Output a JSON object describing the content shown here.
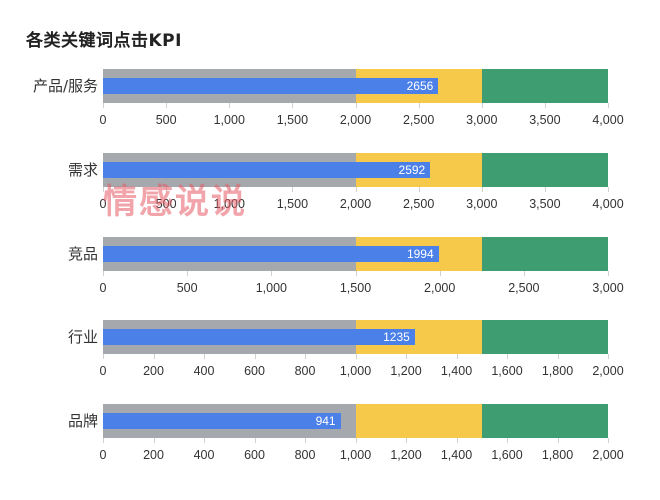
{
  "title": "各类关键词点击KPI",
  "watermark": "情感说说",
  "colors": {
    "poor": "#a5a8ad",
    "satisfactory": "#f6c94a",
    "good": "#3e9e72",
    "actual": "#4a80e8"
  },
  "chart_data": {
    "type": "bar",
    "subtype": "bullet",
    "title": "各类关键词点击KPI",
    "orientation": "horizontal",
    "categories": [
      "产品/服务",
      "需求",
      "竞品",
      "行业",
      "品牌"
    ],
    "series": [
      {
        "name": "actual",
        "values": [
          2656,
          2592,
          1994,
          1235,
          941
        ]
      }
    ],
    "rows": [
      {
        "label": "产品/服务",
        "value": 2656,
        "ranges": [
          2000,
          3000,
          4000
        ],
        "xlim": [
          0,
          4000
        ],
        "ticks": [
          "0",
          "500",
          "1,000",
          "1,500",
          "2,000",
          "2,500",
          "3,000",
          "3,500",
          "4,000"
        ]
      },
      {
        "label": "需求",
        "value": 2592,
        "ranges": [
          2000,
          3000,
          4000
        ],
        "xlim": [
          0,
          4000
        ],
        "ticks": [
          "0",
          "500",
          "1,000",
          "1,500",
          "2,000",
          "2,500",
          "3,000",
          "3,500",
          "4,000"
        ]
      },
      {
        "label": "竞品",
        "value": 1994,
        "ranges": [
          1500,
          2250,
          3000
        ],
        "xlim": [
          0,
          3000
        ],
        "ticks": [
          "0",
          "500",
          "1,000",
          "1,500",
          "2,000",
          "2,500",
          "3,000"
        ]
      },
      {
        "label": "行业",
        "value": 1235,
        "ranges": [
          1000,
          1500,
          2000
        ],
        "xlim": [
          0,
          2000
        ],
        "ticks": [
          "0",
          "200",
          "400",
          "600",
          "800",
          "1,000",
          "1,200",
          "1,400",
          "1,600",
          "1,800",
          "2,000"
        ]
      },
      {
        "label": "品牌",
        "value": 941,
        "ranges": [
          1000,
          1500,
          2000
        ],
        "xlim": [
          0,
          2000
        ],
        "ticks": [
          "0",
          "200",
          "400",
          "600",
          "800",
          "1,000",
          "1,200",
          "1,400",
          "1,600",
          "1,800",
          "2,000"
        ]
      }
    ],
    "band_colors": [
      "#a5a8ad",
      "#f6c94a",
      "#3e9e72"
    ],
    "bar_color": "#4a80e8",
    "legend": "none",
    "grid": false
  }
}
